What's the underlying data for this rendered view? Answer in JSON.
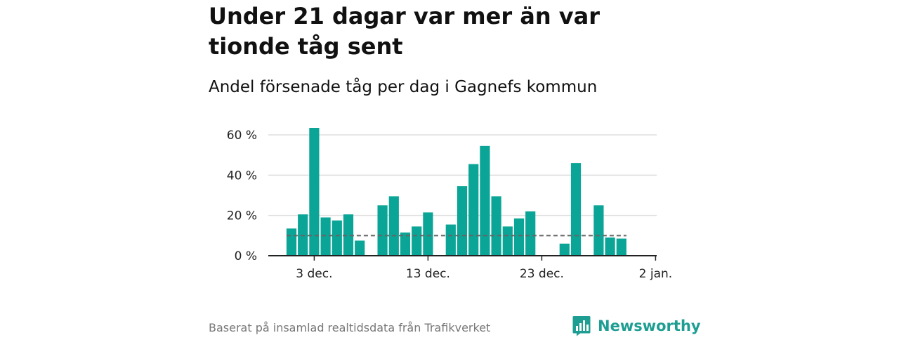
{
  "header": {
    "title": "Under 21 dagar var mer än var tionde tåg sent",
    "subtitle": "Andel försenade tåg per dag i Gagnefs kommun"
  },
  "footer": {
    "source": "Baserat på insamlad realtidsdata från Trafikverket",
    "brand": "Newsworthy"
  },
  "colors": {
    "bar": "#0aa596",
    "reference_line": "#666666",
    "grid": "#dddddd",
    "brand": "#1e9e92"
  },
  "icons": {
    "brand_logo": "newsworthy-logo-icon"
  },
  "chart_data": {
    "type": "bar",
    "title": "Under 21 dagar var mer än var tionde tåg sent",
    "subtitle": "Andel försenade tåg per dag i Gagnefs kommun",
    "xlabel": "",
    "ylabel": "",
    "x_type": "date",
    "categories": [
      "2019-12-01",
      "2019-12-02",
      "2019-12-03",
      "2019-12-04",
      "2019-12-05",
      "2019-12-06",
      "2019-12-07",
      "2019-12-08",
      "2019-12-09",
      "2019-12-10",
      "2019-12-11",
      "2019-12-12",
      "2019-12-13",
      "2019-12-14",
      "2019-12-15",
      "2019-12-16",
      "2019-12-17",
      "2019-12-18",
      "2019-12-19",
      "2019-12-20",
      "2019-12-21",
      "2019-12-22",
      "2019-12-23",
      "2019-12-24",
      "2019-12-25",
      "2019-12-26",
      "2019-12-27",
      "2019-12-28",
      "2019-12-29",
      "2019-12-30",
      "2019-12-31"
    ],
    "values": [
      13.5,
      20.5,
      63.5,
      19,
      17.5,
      20.5,
      7.5,
      null,
      25,
      29.5,
      11.5,
      14.5,
      21.5,
      null,
      15.5,
      34.5,
      45.5,
      54.5,
      29.5,
      14.5,
      18.5,
      22,
      null,
      null,
      6,
      46,
      null,
      25,
      9,
      8.5,
      null
    ],
    "reference_line": 10,
    "ylim": [
      0,
      70
    ],
    "y_ticks": [
      0,
      20,
      40,
      60
    ],
    "y_tick_labels": [
      "0 %",
      "20 %",
      "40 %",
      "60 %"
    ],
    "x_ticks": [
      "2019-12-03",
      "2019-12-13",
      "2019-12-23",
      "2020-01-02"
    ],
    "x_tick_labels": [
      "3 dec.",
      "13 dec.",
      "23 dec.",
      "2 jan."
    ],
    "grid": true,
    "legend": "none"
  }
}
